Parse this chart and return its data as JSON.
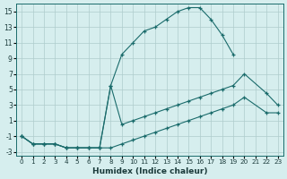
{
  "xlabel": "Humidex (Indice chaleur)",
  "bg_color": "#d6eeee",
  "grid_color": "#aecccc",
  "line_color": "#1a6b6b",
  "xlim": [
    -0.5,
    23.5
  ],
  "ylim": [
    -3.5,
    16
  ],
  "xticks": [
    0,
    1,
    2,
    3,
    4,
    5,
    6,
    7,
    8,
    9,
    10,
    11,
    12,
    13,
    14,
    15,
    16,
    17,
    18,
    19,
    20,
    21,
    22,
    23
  ],
  "yticks": [
    -3,
    -1,
    1,
    3,
    5,
    7,
    9,
    11,
    13,
    15
  ],
  "line1_x": [
    0,
    1,
    2,
    3,
    4,
    5,
    6,
    7,
    8,
    9,
    10,
    11,
    12,
    13,
    14,
    15,
    16,
    17,
    18,
    19
  ],
  "line1_y": [
    -1,
    -2,
    -2,
    -2,
    -2.5,
    -2.5,
    -2.5,
    -2.5,
    5.5,
    9.5,
    11,
    12.5,
    13,
    14,
    15,
    15.5,
    15.5,
    14,
    12,
    9.5
  ],
  "line2_x": [
    0,
    1,
    2,
    3,
    4,
    5,
    6,
    7,
    8,
    9,
    10,
    11,
    12,
    13,
    14,
    15,
    16,
    17,
    18,
    19,
    20,
    22,
    23
  ],
  "line2_y": [
    -1,
    -2,
    -2,
    -2,
    -2.5,
    -2.5,
    -2.5,
    -2.5,
    5.5,
    0.5,
    1,
    1.5,
    2,
    2.5,
    3,
    3.5,
    4,
    4.5,
    5,
    5.5,
    7,
    4.5,
    3
  ],
  "line3_x": [
    0,
    1,
    2,
    3,
    4,
    5,
    6,
    7,
    8,
    9,
    10,
    11,
    12,
    13,
    14,
    15,
    16,
    17,
    18,
    19,
    20,
    22,
    23
  ],
  "line3_y": [
    -1,
    -2,
    -2,
    -2,
    -2.5,
    -2.5,
    -2.5,
    -2.5,
    -2.5,
    -2,
    -1.5,
    -1,
    -0.5,
    0,
    0.5,
    1,
    1.5,
    2,
    2.5,
    3,
    4,
    2,
    2
  ]
}
